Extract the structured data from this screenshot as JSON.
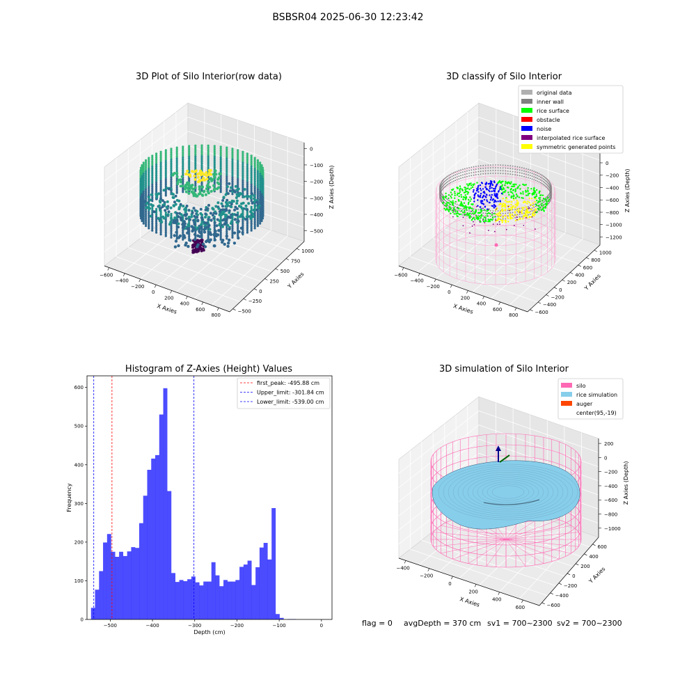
{
  "figure": {
    "suptitle": "BSBSR04 2025-06-30 12:23:42",
    "footer": {
      "flag": "flag = 0",
      "avg_depth": "avgDepth = 370 cm",
      "sv1": "sv1 = 700~2300",
      "sv2": "sv2 = 700~2300"
    }
  },
  "panels": {
    "raw3d": {
      "title": "3D Plot of Silo Interior(row data)",
      "xlabel": "X Axies",
      "ylabel": "Y Axies",
      "zlabel": "Z Axies (Depth)",
      "x_ticks": [
        "−600",
        "−400",
        "−200",
        "0",
        "200",
        "400",
        "600",
        "800"
      ],
      "y_ticks": [
        "−500",
        "−250",
        "0",
        "250",
        "500",
        "750",
        "1000"
      ],
      "z_ticks": [
        "0",
        "−100",
        "−200",
        "−300",
        "−400",
        "−500"
      ],
      "colormap": [
        "#440154",
        "#31688e",
        "#21918c",
        "#35b779",
        "#fde725"
      ]
    },
    "classify3d": {
      "title": "3D classify of Silo Interior",
      "xlabel": "X Axies",
      "ylabel": "Y Axies",
      "zlabel": "Z Axies (Depth)",
      "x_ticks": [
        "−600",
        "−400",
        "−200",
        "0",
        "200",
        "400",
        "600",
        "800"
      ],
      "y_ticks": [
        "−600",
        "−400",
        "−200",
        "0",
        "200",
        "400",
        "600",
        "800",
        "1000"
      ],
      "z_ticks": [
        "200",
        "0",
        "−200",
        "−400",
        "−600",
        "−800",
        "−1000",
        "−1200"
      ],
      "legend": [
        {
          "label": "original data",
          "color": "#b0b0b0"
        },
        {
          "label": "inner wall",
          "color": "#808080"
        },
        {
          "label": "rice surface",
          "color": "#00ff00"
        },
        {
          "label": "obstacle",
          "color": "#ff0000"
        },
        {
          "label": "noise",
          "color": "#0000ff"
        },
        {
          "label": "interpolated rice surface",
          "color": "#800080"
        },
        {
          "label": "symmetric generated points",
          "color": "#ffff00"
        }
      ]
    },
    "histogram": {
      "title": "Histogram of Z-Axies (Height) Values"
    },
    "simulation3d": {
      "title": "3D simulation of Silo Interior",
      "xlabel": "X Axies",
      "ylabel": "Y Axies",
      "zlabel": "Z Axies (Depth)",
      "x_ticks": [
        "−400",
        "−200",
        "0",
        "200",
        "400",
        "600"
      ],
      "y_ticks": [
        "−600",
        "−400",
        "−200",
        "0",
        "200",
        "400",
        "600"
      ],
      "z_ticks": [
        "200",
        "0",
        "−200",
        "−400",
        "−600",
        "−800",
        "−1000"
      ],
      "legend": [
        {
          "label": "silo",
          "color": "#ff69b4"
        },
        {
          "label": "rice simulation",
          "color": "#87ceeb"
        },
        {
          "label": "auger",
          "color": "#ff4500"
        },
        {
          "label": "center(95,-19)",
          "color": ""
        }
      ]
    }
  },
  "chart_data": {
    "type": "bar",
    "title": "Histogram of Z-Axies (Height) Values",
    "xlabel": "Depth (cm)",
    "ylabel": "Frequency",
    "xlim": [
      -555,
      25
    ],
    "ylim": [
      0,
      630
    ],
    "x_ticks": [
      -500,
      -400,
      -300,
      -200,
      -100,
      0
    ],
    "x_tick_labels": [
      "−500",
      "−400",
      "−300",
      "−200",
      "−100",
      "0"
    ],
    "y_ticks": [
      0,
      100,
      200,
      300,
      400,
      500,
      600
    ],
    "bar_color": "#0000ff",
    "bin_start": -545.5,
    "bin_width": 9.5,
    "values": [
      30,
      77,
      125,
      199,
      221,
      175,
      162,
      175,
      164,
      176,
      187,
      185,
      249,
      320,
      387,
      416,
      425,
      530,
      598,
      332,
      120,
      97,
      102,
      99,
      104,
      111,
      96,
      88,
      98,
      98,
      148,
      114,
      86,
      102,
      98,
      98,
      102,
      136,
      142,
      152,
      89,
      135,
      186,
      198,
      155,
      288,
      14,
      4,
      0,
      1,
      1
    ],
    "lines": [
      {
        "label": "first_peak: -495.88 cm",
        "value": -495.88,
        "color": "#ff0000"
      },
      {
        "label": "Upper_limit: -301.84 cm",
        "value": -301.84,
        "color": "#0000ff"
      },
      {
        "label": "Lower_limit: -539.00 cm",
        "value": -539.0,
        "color": "#0000ff"
      }
    ],
    "legend_position": "upper right"
  }
}
